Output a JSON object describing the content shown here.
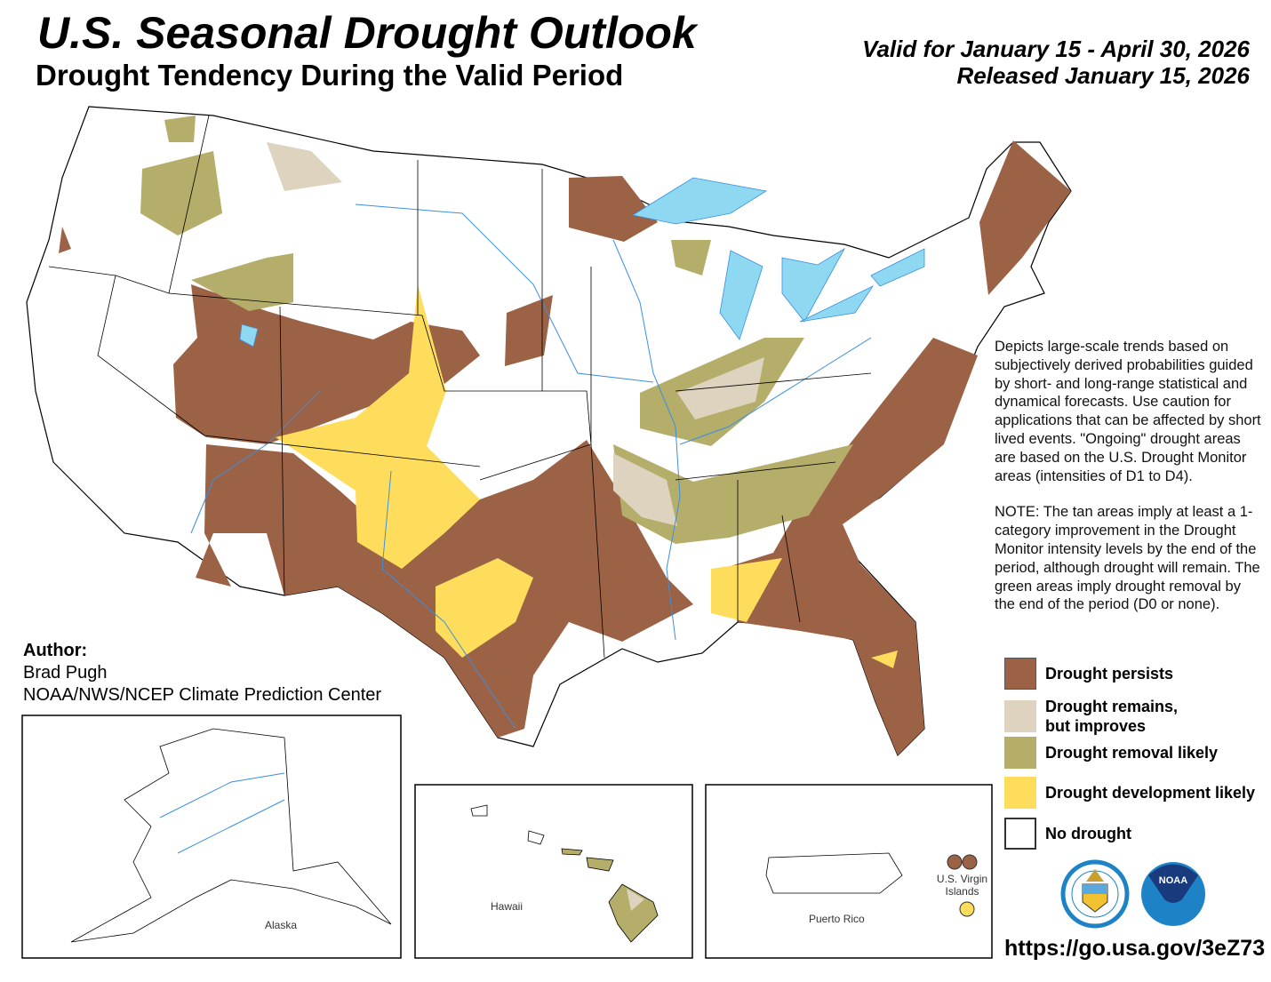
{
  "header": {
    "title": "U.S. Seasonal Drought Outlook",
    "subtitle": "Drought Tendency During the Valid Period",
    "valid_period": "Valid for January 15 - April 30, 2026",
    "released": "Released January 15, 2026"
  },
  "notes": {
    "description": "Depicts large-scale trends based on subjectively derived probabilities guided by short- and long-range statistical and dynamical forecasts. Use caution for applications that can be affected by short lived events. \"Ongoing\" drought areas are based on the U.S. Drought Monitor areas (intensities of D1 to D4).",
    "note": "NOTE: The tan areas imply at least a 1-category improvement in the Drought Monitor intensity levels by the end of the period, although drought will remain. The green areas imply drought removal by the end of the period (D0 or none)."
  },
  "legend": [
    {
      "label": "Drought persists",
      "color": "#9b6245"
    },
    {
      "label": "Drought remains, but improves",
      "color": "#ddd3bf"
    },
    {
      "label": "Drought removal likely",
      "color": "#b5ad6a"
    },
    {
      "label": "Drought development likely",
      "color": "#fedd5d"
    },
    {
      "label": "No drought",
      "color": "#ffffff"
    }
  ],
  "author": {
    "heading": "Author:",
    "name": "Brad Pugh",
    "org": "NOAA/NWS/NCEP Climate Prediction Center"
  },
  "insets": {
    "alaska": "Alaska",
    "hawaii": "Hawaii",
    "puerto_rico": "Puerto Rico",
    "virgin_islands": "U.S. Virgin Islands"
  },
  "logos": {
    "commerce": "DEPARTMENT OF COMMERCE UNITED STATES OF AMERICA",
    "noaa": "NOAA"
  },
  "url": "https://go.usa.gov/3eZ73",
  "colors": {
    "water": "#8fd8f2",
    "rivers": "#3a8fe0",
    "borders": "#000000"
  }
}
